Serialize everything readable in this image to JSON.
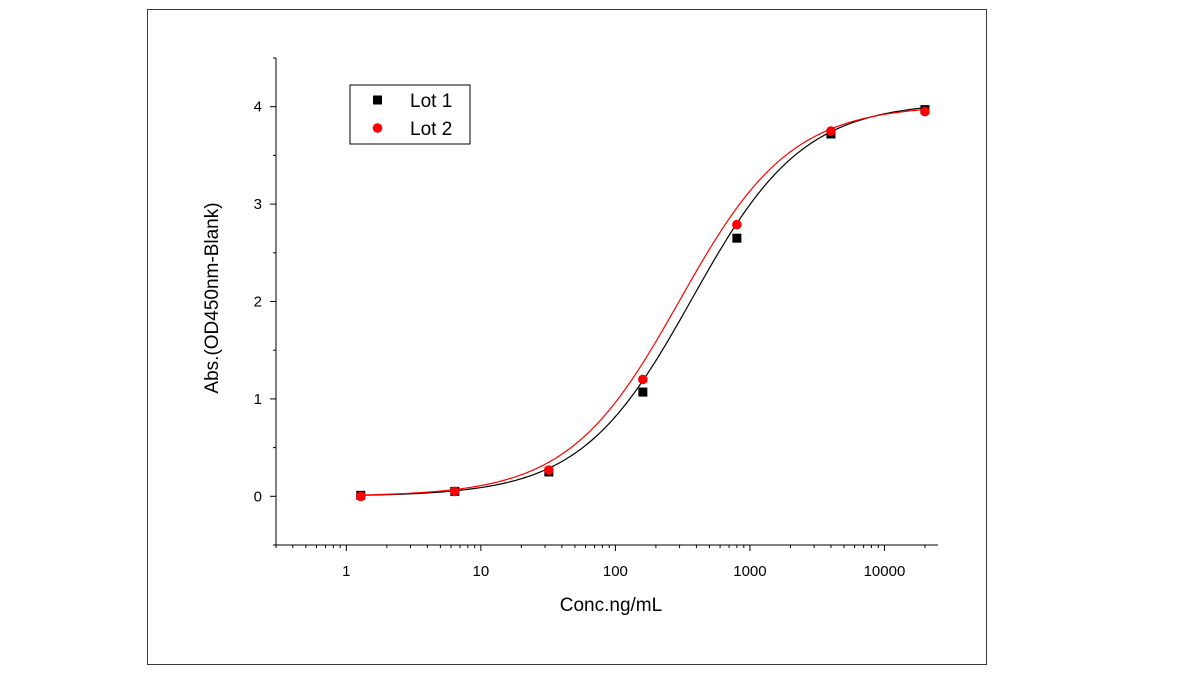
{
  "chart_data": {
    "type": "scatter",
    "title": "",
    "xlabel": "Conc.ng/mL",
    "ylabel": "Abs.(OD450nm-Blank)",
    "xscale": "log",
    "xlim": [
      0.3,
      25000
    ],
    "ylim": [
      -0.5,
      4.5
    ],
    "x_ticks": [
      1,
      10,
      100,
      1000,
      10000
    ],
    "x_tick_labels": [
      "1",
      "10",
      "100",
      "1000",
      "10000"
    ],
    "y_ticks": [
      0,
      1,
      2,
      3,
      4
    ],
    "y_tick_labels": [
      "0",
      "1",
      "2",
      "3",
      "4"
    ],
    "grid": false,
    "legend_position": "top-left",
    "fit": "4-parameter logistic curve through each series",
    "series": [
      {
        "name": "Lot 1",
        "marker": "square",
        "color": "#000000",
        "x": [
          1.28,
          6.4,
          32,
          160,
          800,
          4000,
          20000
        ],
        "y": [
          0.01,
          0.05,
          0.25,
          1.07,
          2.65,
          3.72,
          3.97
        ],
        "fit_params": {
          "bottom": 0.0,
          "top": 4.05,
          "ec50": 370,
          "hill": 1.05
        }
      },
      {
        "name": "Lot 2",
        "marker": "circle",
        "color": "#ff0000",
        "x": [
          1.28,
          6.4,
          32,
          160,
          800,
          4000,
          20000
        ],
        "y": [
          0.0,
          0.05,
          0.27,
          1.2,
          2.79,
          3.75,
          3.95
        ],
        "fit_params": {
          "bottom": 0.0,
          "top": 4.02,
          "ec50": 300,
          "hill": 1.05
        }
      }
    ]
  }
}
